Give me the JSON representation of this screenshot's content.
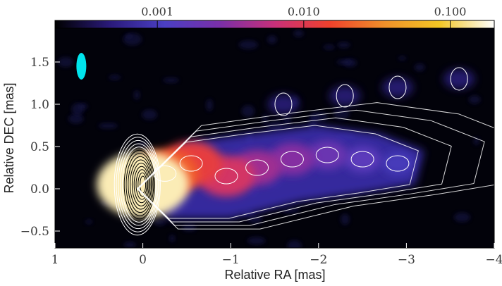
{
  "chart_data": {
    "type": "heatmap",
    "title": "",
    "xlabel": "Relative RA [mas]",
    "ylabel": "Relative DEC [mas]",
    "xlim": [
      1,
      -4
    ],
    "ylim": [
      -0.7,
      1.9
    ],
    "x_ticks": [
      1,
      0,
      -1,
      -2,
      -3,
      -4
    ],
    "x_tick_labels": [
      "1",
      "0",
      "−1",
      "−2",
      "−3",
      "−4"
    ],
    "y_ticks": [
      -0.5,
      0.0,
      0.5,
      1.0,
      1.5
    ],
    "y_tick_labels": [
      "−0.5",
      "0.0",
      "0.5",
      "1.0",
      "1.5"
    ],
    "colorbar": {
      "scale": "log",
      "range": [
        0.0002,
        0.2
      ],
      "ticks": [
        0.001,
        0.01,
        0.1
      ],
      "tick_labels": [
        "0.001",
        "0.010",
        "0.100"
      ],
      "colors": [
        "#000000",
        "#2a1a7a",
        "#4b3fc4",
        "#7a2fa8",
        "#c8307a",
        "#f0412c",
        "#f0902a",
        "#f2c624",
        "#ffffff"
      ]
    },
    "jet_components": [
      {
        "x": 0.0,
        "y": 0.05,
        "intensity": 0.15
      },
      {
        "x": -0.25,
        "y": 0.18,
        "intensity": 0.02
      },
      {
        "x": -0.55,
        "y": 0.3,
        "intensity": 0.012
      },
      {
        "x": -0.95,
        "y": 0.15,
        "intensity": 0.008
      },
      {
        "x": -1.3,
        "y": 0.25,
        "intensity": 0.004
      },
      {
        "x": -1.7,
        "y": 0.35,
        "intensity": 0.003
      },
      {
        "x": -2.1,
        "y": 0.4,
        "intensity": 0.002
      },
      {
        "x": -2.5,
        "y": 0.35,
        "intensity": 0.0015
      },
      {
        "x": -2.9,
        "y": 0.3,
        "intensity": 0.001
      }
    ],
    "beam": {
      "x": 0.7,
      "y": 1.45,
      "color": "#00e5ee"
    },
    "contours": true,
    "grid": false
  }
}
